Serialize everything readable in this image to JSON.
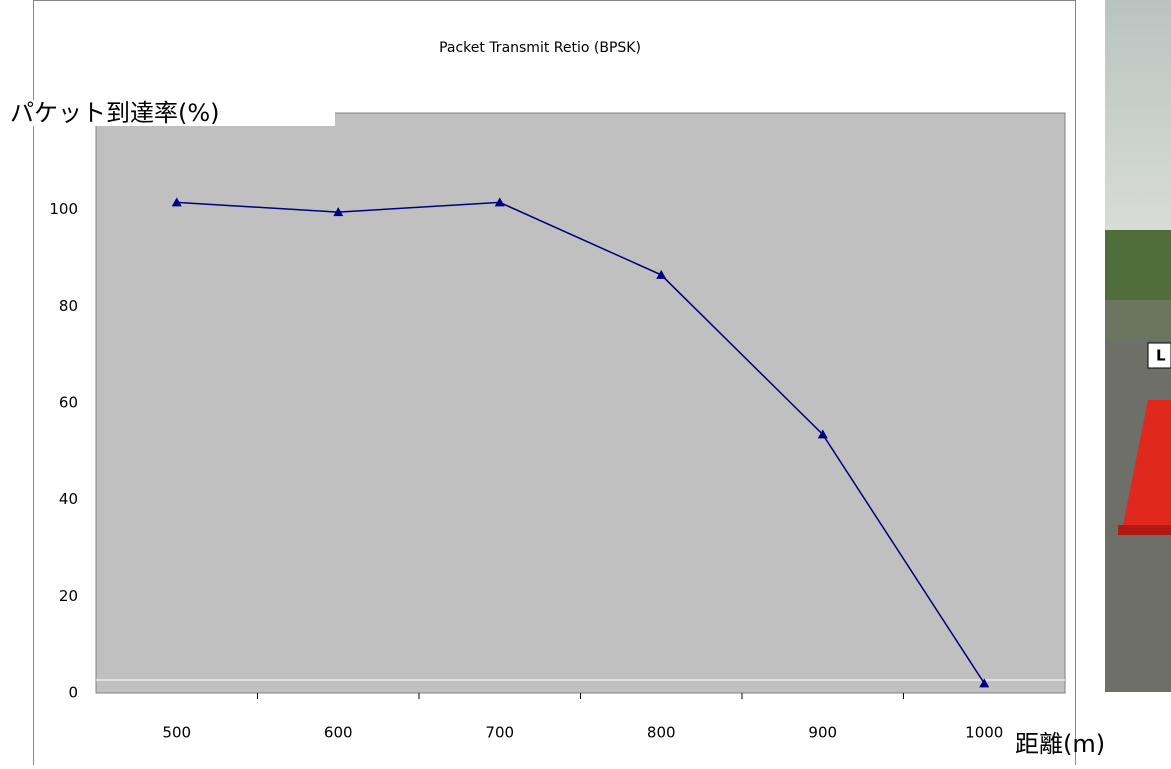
{
  "chart_data": {
    "type": "line",
    "title": "Packet Transmit Retio (BPSK)",
    "y_label": "パケット到達率(%)",
    "x_label": "距離(m)",
    "categories": [
      "500",
      "600",
      "700",
      "800",
      "900",
      "1000"
    ],
    "series": [
      {
        "color": "#000080",
        "values": [
          101.5,
          99.5,
          101.5,
          86.5,
          53.5,
          2
        ]
      }
    ],
    "ylim": [
      0,
      120
    ],
    "yticks": [
      0,
      20,
      40,
      60,
      80,
      100
    ],
    "grid": false,
    "plot_color": "#c0c0c0"
  },
  "photo_label": "L"
}
